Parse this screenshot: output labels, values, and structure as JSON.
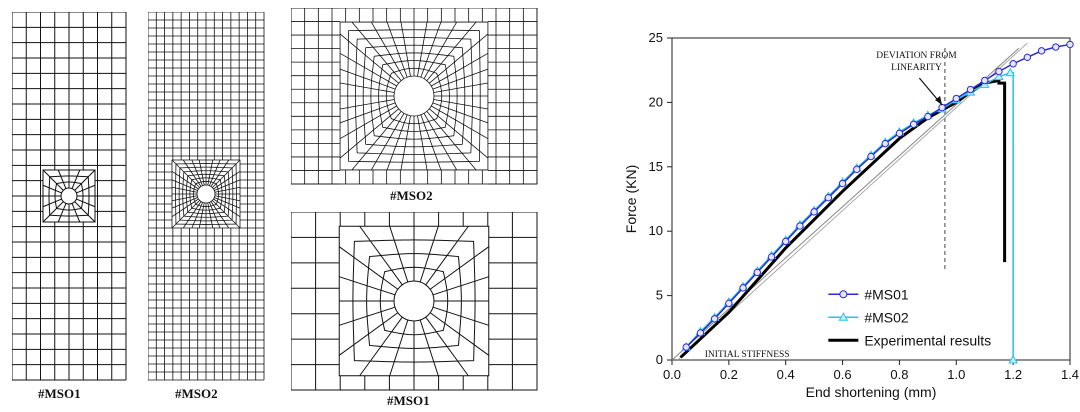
{
  "figure": {
    "mesh_labels": {
      "coarse_full": "#MSO1",
      "fine_full": "#MSO2",
      "fine_detail": "#MSO2",
      "coarse_detail": "#MSO1"
    }
  },
  "chart_data": {
    "type": "line",
    "xlabel": "End shortening (mm)",
    "ylabel": "Force (KN)",
    "xlim": [
      0,
      1.4
    ],
    "ylim": [
      0,
      25
    ],
    "x_ticks": [
      "0.0",
      "0.2",
      "0.4",
      "0.6",
      "0.8",
      "1.0",
      "1.2",
      "1.4"
    ],
    "y_ticks": [
      "0",
      "5",
      "10",
      "15",
      "20",
      "25"
    ],
    "grid": false,
    "legend_position": "lower-right",
    "annotations": {
      "deviation": "DEVIATION FROM\nLINEARITY",
      "initial_stiffness": "INITIAL STIFFNESS"
    },
    "reference_line_x": 0.96,
    "series": [
      {
        "name": "#MS01",
        "color": "#2b2bd9",
        "marker": "circle",
        "x": [
          0.05,
          0.1,
          0.15,
          0.2,
          0.25,
          0.3,
          0.35,
          0.4,
          0.45,
          0.5,
          0.55,
          0.6,
          0.65,
          0.7,
          0.75,
          0.8,
          0.85,
          0.9,
          0.95,
          1.0,
          1.05,
          1.1,
          1.15,
          1.2,
          1.25,
          1.3,
          1.35,
          1.4
        ],
        "y": [
          1.0,
          2.1,
          3.2,
          4.4,
          5.6,
          6.8,
          8.0,
          9.2,
          10.4,
          11.5,
          12.6,
          13.7,
          14.8,
          15.8,
          16.8,
          17.6,
          18.3,
          18.9,
          19.6,
          20.3,
          21.0,
          21.7,
          22.4,
          23.0,
          23.5,
          24.0,
          24.3,
          24.5
        ]
      },
      {
        "name": "#MS02",
        "color": "#27c3e6",
        "marker": "triangle",
        "x": [
          0.05,
          0.1,
          0.15,
          0.2,
          0.25,
          0.3,
          0.35,
          0.4,
          0.45,
          0.5,
          0.55,
          0.6,
          0.65,
          0.7,
          0.75,
          0.8,
          0.85,
          0.9,
          0.95,
          1.0,
          1.05,
          1.1,
          1.15,
          1.19
        ],
        "y": [
          1.0,
          2.2,
          3.3,
          4.5,
          5.7,
          6.9,
          8.1,
          9.3,
          10.5,
          11.6,
          12.7,
          13.8,
          14.9,
          15.9,
          16.9,
          17.7,
          18.4,
          19.0,
          19.5,
          20.2,
          20.8,
          21.4,
          22.0,
          22.3
        ],
        "drop_to": [
          1.2,
          0
        ]
      },
      {
        "name": "Experimental results",
        "color": "#000000",
        "marker": "none",
        "x": [
          0.03,
          0.2,
          0.4,
          0.6,
          0.8,
          0.9,
          1.0,
          1.05,
          1.1,
          1.15,
          1.15,
          1.17,
          1.17
        ],
        "y": [
          0.2,
          3.7,
          8.7,
          13.1,
          17.2,
          18.8,
          20.0,
          20.8,
          21.5,
          21.7,
          21.5,
          21.5,
          7.6
        ]
      }
    ]
  }
}
